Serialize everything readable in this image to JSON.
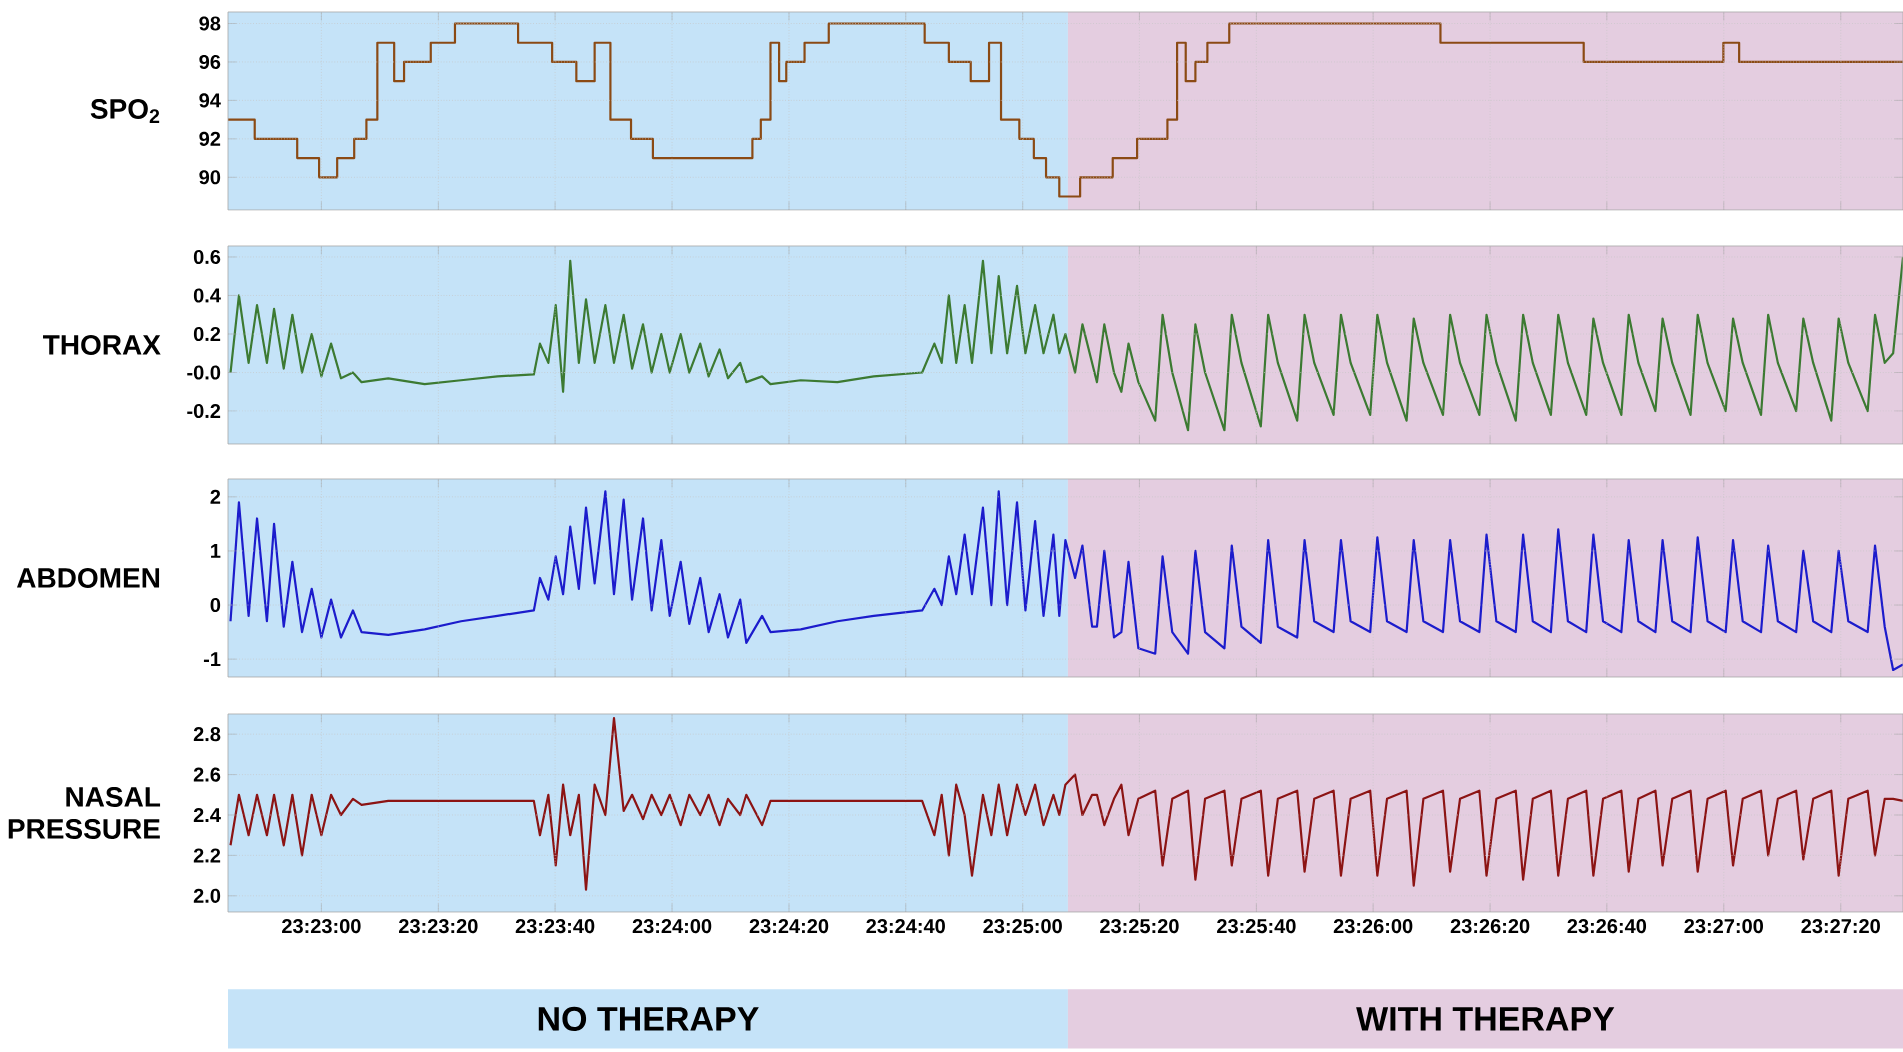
{
  "chart_data": [
    {
      "type": "step",
      "ylabel": "SPO$_{2}$",
      "color": "#8b4a14",
      "x": [
        23.37889,
        23.38016,
        23.38218,
        23.38322,
        23.38408,
        23.38489,
        23.38547,
        23.38599,
        23.38679,
        23.38726,
        23.38853,
        23.38968,
        23.39268,
        23.3943,
        23.39545,
        23.39632,
        23.39707,
        23.39805,
        23.39909,
        23.40382,
        23.40422,
        23.40468,
        23.40509,
        23.40543,
        23.4063,
        23.40745,
        23.41201,
        23.41316,
        23.4142,
        23.41507,
        23.41564,
        23.41651,
        23.4172,
        23.41778,
        23.41841,
        23.4194,
        23.42095,
        23.42211,
        23.42355,
        23.42401,
        23.42442,
        23.42488,
        23.42545,
        23.42649,
        23.43653,
        23.44334,
        23.44998,
        23.45073,
        23.45852
      ],
      "values": [
        93,
        92,
        91,
        90,
        91,
        92,
        93,
        97,
        95,
        96,
        97,
        98,
        97,
        96,
        95,
        97,
        93,
        92,
        91,
        92,
        93,
        97,
        95,
        96,
        97,
        98,
        97,
        96,
        95,
        97,
        93,
        92,
        91,
        90,
        89,
        90,
        91,
        92,
        93,
        97,
        95,
        96,
        97,
        98,
        97,
        96,
        97,
        96,
        96
      ],
      "xlim": [
        23.37889,
        23.45852
      ],
      "ylim": [
        88.3,
        98.6
      ],
      "xticks": [
        {
          "value": 23.38333,
          "label": null
        },
        {
          "value": 23.38889,
          "label": null
        },
        {
          "value": 23.39444,
          "label": null
        },
        {
          "value": 23.4,
          "label": null
        },
        {
          "value": 23.40556,
          "label": null
        },
        {
          "value": 23.41111,
          "label": null
        },
        {
          "value": 23.41667,
          "label": null
        },
        {
          "value": 23.42222,
          "label": null
        },
        {
          "value": 23.42778,
          "label": null
        },
        {
          "value": 23.43333,
          "label": null
        },
        {
          "value": 23.43889,
          "label": null
        },
        {
          "value": 23.44444,
          "label": null
        },
        {
          "value": 23.45,
          "label": null
        },
        {
          "value": 23.45556,
          "label": null
        }
      ],
      "yticks": [
        90,
        92,
        94,
        96,
        98
      ],
      "tick_labels": "y",
      "grid": true,
      "bands": [
        {
          "axis": "x",
          "from": 23.37889,
          "to": 23.41882,
          "color": "#c5e3f8"
        },
        {
          "axis": "x",
          "from": 23.41882,
          "to": 23.45852,
          "color": "#e4cde0"
        }
      ]
    },
    {
      "type": "line",
      "ylabel": "THORAX",
      "color": "#3c7a32",
      "x": [
        23.37901,
        23.37941,
        23.37987,
        23.38027,
        23.38074,
        23.38108,
        23.38154,
        23.38195,
        23.38241,
        23.38287,
        23.38333,
        23.38379,
        23.38426,
        23.38483,
        23.38524,
        23.38651,
        23.38824,
        23.38997,
        23.3917,
        23.39343,
        23.39372,
        23.39412,
        23.39447,
        23.39482,
        23.39516,
        23.39557,
        23.39591,
        23.39632,
        23.39683,
        23.39724,
        23.3977,
        23.3981,
        23.39862,
        23.39903,
        23.39949,
        23.39989,
        23.40041,
        23.40082,
        23.40134,
        23.40174,
        23.40226,
        23.40266,
        23.40324,
        23.40353,
        23.40428,
        23.40468,
        23.40612,
        23.40786,
        23.40959,
        23.41189,
        23.41247,
        23.41282,
        23.41316,
        23.41351,
        23.41391,
        23.41426,
        23.41478,
        23.41518,
        23.41553,
        23.41593,
        23.4164,
        23.4168,
        23.41726,
        23.41766,
        23.41813,
        23.41841,
        23.4187,
        23.41916,
        23.41951,
        23.41997,
        23.4202,
        23.42055,
        23.42101,
        23.42136,
        23.4217,
        23.42217,
        23.42297,
        23.42332,
        23.42378,
        23.42453,
        23.42488,
        23.42534,
        23.42626,
        23.42661,
        23.42707,
        23.42799,
        23.42834,
        23.4288,
        23.42972,
        23.43007,
        23.43053,
        23.43145,
        23.4318,
        23.43226,
        23.43319,
        23.43353,
        23.43399,
        23.43492,
        23.43526,
        23.43572,
        23.43665,
        23.43699,
        23.43746,
        23.43838,
        23.43872,
        23.43919,
        23.44011,
        23.44046,
        23.44092,
        23.44178,
        23.44213,
        23.44259,
        23.44346,
        23.4438,
        23.44426,
        23.44513,
        23.44548,
        23.44594,
        23.44675,
        23.44709,
        23.44755,
        23.44842,
        23.44876,
        23.44923,
        23.45009,
        23.45044,
        23.4509,
        23.45177,
        23.45211,
        23.45257,
        23.45344,
        23.45378,
        23.45425,
        23.45511,
        23.45546,
        23.45592,
        23.45684,
        23.45719,
        23.45765,
        23.45805,
        23.45852
      ],
      "values": [
        0.0,
        0.4,
        0.05,
        0.35,
        0.05,
        0.33,
        0.02,
        0.3,
        0.0,
        0.2,
        -0.02,
        0.15,
        -0.03,
        0.0,
        -0.05,
        -0.03,
        -0.06,
        -0.04,
        -0.02,
        -0.01,
        0.15,
        0.05,
        0.35,
        -0.1,
        0.58,
        0.05,
        0.38,
        0.05,
        0.35,
        0.05,
        0.3,
        0.02,
        0.25,
        0.0,
        0.2,
        0.0,
        0.2,
        0.0,
        0.15,
        -0.02,
        0.12,
        -0.03,
        0.05,
        -0.05,
        -0.02,
        -0.06,
        -0.04,
        -0.05,
        -0.02,
        0.0,
        0.15,
        0.05,
        0.4,
        0.05,
        0.35,
        0.05,
        0.58,
        0.1,
        0.5,
        0.1,
        0.45,
        0.1,
        0.35,
        0.1,
        0.3,
        0.1,
        0.2,
        0.0,
        0.25,
        0.05,
        -0.05,
        0.25,
        0.0,
        -0.1,
        0.15,
        -0.05,
        -0.25,
        0.3,
        0.0,
        -0.3,
        0.25,
        0.0,
        -0.3,
        0.3,
        0.05,
        -0.28,
        0.3,
        0.05,
        -0.25,
        0.3,
        0.05,
        -0.22,
        0.3,
        0.05,
        -0.22,
        0.3,
        0.05,
        -0.25,
        0.28,
        0.05,
        -0.22,
        0.3,
        0.05,
        -0.22,
        0.3,
        0.05,
        -0.25,
        0.3,
        0.05,
        -0.22,
        0.3,
        0.05,
        -0.22,
        0.28,
        0.05,
        -0.22,
        0.3,
        0.05,
        -0.2,
        0.28,
        0.05,
        -0.22,
        0.3,
        0.05,
        -0.2,
        0.28,
        0.05,
        -0.22,
        0.3,
        0.05,
        -0.2,
        0.28,
        0.05,
        -0.25,
        0.28,
        0.05,
        -0.2,
        0.3,
        0.05,
        0.1,
        0.6
      ],
      "xlim": [
        23.37889,
        23.45852
      ],
      "ylim": [
        -0.371,
        0.657
      ],
      "xticks": [
        {
          "value": 23.38333,
          "label": null
        },
        {
          "value": 23.38889,
          "label": null
        },
        {
          "value": 23.39444,
          "label": null
        },
        {
          "value": 23.4,
          "label": null
        },
        {
          "value": 23.40556,
          "label": null
        },
        {
          "value": 23.41111,
          "label": null
        },
        {
          "value": 23.41667,
          "label": null
        },
        {
          "value": 23.42222,
          "label": null
        },
        {
          "value": 23.42778,
          "label": null
        },
        {
          "value": 23.43333,
          "label": null
        },
        {
          "value": 23.43889,
          "label": null
        },
        {
          "value": 23.44444,
          "label": null
        },
        {
          "value": 23.45,
          "label": null
        },
        {
          "value": 23.45556,
          "label": null
        }
      ],
      "yticks": [
        -0.2,
        {
          "value": 0,
          "label": "-0.0"
        },
        0.2,
        0.4,
        0.6
      ],
      "tick_labels": "y",
      "grid": true,
      "bands": [
        {
          "axis": "x",
          "from": 23.37889,
          "to": 23.41882,
          "color": "#c5e3f8"
        },
        {
          "axis": "x",
          "from": 23.41882,
          "to": 23.45852,
          "color": "#e4cde0"
        }
      ]
    },
    {
      "type": "line",
      "ylabel": "ABDOMEN",
      "color": "#1c1ccc",
      "x": [
        23.37901,
        23.37941,
        23.37987,
        23.38027,
        23.38074,
        23.38108,
        23.38154,
        23.38195,
        23.38241,
        23.38287,
        23.38333,
        23.38379,
        23.38426,
        23.38483,
        23.38524,
        23.38651,
        23.38824,
        23.38997,
        23.3917,
        23.39343,
        23.39372,
        23.39412,
        23.39447,
        23.39482,
        23.39516,
        23.39557,
        23.39591,
        23.39632,
        23.39683,
        23.39724,
        23.3977,
        23.3981,
        23.39862,
        23.39903,
        23.39949,
        23.39989,
        23.40041,
        23.40082,
        23.40134,
        23.40174,
        23.40226,
        23.40266,
        23.40324,
        23.40353,
        23.40428,
        23.40468,
        23.40612,
        23.40786,
        23.40959,
        23.41189,
        23.41247,
        23.41282,
        23.41316,
        23.41351,
        23.41391,
        23.41426,
        23.41478,
        23.41518,
        23.41553,
        23.41593,
        23.4164,
        23.4168,
        23.41726,
        23.41766,
        23.41813,
        23.41841,
        23.4187,
        23.41916,
        23.41951,
        23.41997,
        23.4202,
        23.42055,
        23.42101,
        23.42136,
        23.4217,
        23.42217,
        23.42297,
        23.42332,
        23.42378,
        23.42453,
        23.42488,
        23.42534,
        23.42626,
        23.42661,
        23.42707,
        23.42799,
        23.42834,
        23.4288,
        23.42972,
        23.43007,
        23.43053,
        23.43145,
        23.4318,
        23.43226,
        23.43319,
        23.43353,
        23.43399,
        23.43492,
        23.43526,
        23.43572,
        23.43665,
        23.43699,
        23.43746,
        23.43838,
        23.43872,
        23.43919,
        23.44011,
        23.44046,
        23.44092,
        23.44178,
        23.44213,
        23.44259,
        23.44346,
        23.4438,
        23.44426,
        23.44513,
        23.44548,
        23.44594,
        23.44675,
        23.44709,
        23.44755,
        23.44842,
        23.44876,
        23.44923,
        23.45009,
        23.45044,
        23.4509,
        23.45177,
        23.45211,
        23.45257,
        23.45344,
        23.45378,
        23.45425,
        23.45511,
        23.45546,
        23.45592,
        23.45684,
        23.45719,
        23.45765,
        23.45805,
        23.45852
      ],
      "values": [
        -0.3,
        1.9,
        -0.2,
        1.6,
        -0.3,
        1.5,
        -0.4,
        0.8,
        -0.5,
        0.3,
        -0.6,
        0.1,
        -0.6,
        -0.1,
        -0.5,
        -0.55,
        -0.45,
        -0.3,
        -0.2,
        -0.1,
        0.5,
        0.1,
        0.9,
        0.2,
        1.45,
        0.3,
        1.8,
        0.4,
        2.1,
        0.2,
        1.95,
        0.1,
        1.6,
        -0.1,
        1.2,
        -0.2,
        0.8,
        -0.35,
        0.5,
        -0.5,
        0.2,
        -0.6,
        0.1,
        -0.7,
        -0.2,
        -0.5,
        -0.45,
        -0.3,
        -0.2,
        -0.1,
        0.3,
        0.0,
        0.9,
        0.2,
        1.3,
        0.2,
        1.8,
        0.0,
        2.1,
        0.0,
        1.9,
        -0.1,
        1.55,
        -0.2,
        1.3,
        -0.2,
        1.2,
        0.5,
        1.1,
        -0.4,
        -0.4,
        1.0,
        -0.6,
        -0.5,
        0.8,
        -0.8,
        -0.9,
        0.9,
        -0.5,
        -0.9,
        1.0,
        -0.5,
        -0.8,
        1.1,
        -0.4,
        -0.7,
        1.2,
        -0.4,
        -0.6,
        1.2,
        -0.3,
        -0.5,
        1.2,
        -0.3,
        -0.5,
        1.25,
        -0.3,
        -0.5,
        1.2,
        -0.3,
        -0.5,
        1.2,
        -0.3,
        -0.5,
        1.3,
        -0.3,
        -0.5,
        1.3,
        -0.3,
        -0.5,
        1.4,
        -0.3,
        -0.5,
        1.3,
        -0.3,
        -0.5,
        1.2,
        -0.3,
        -0.5,
        1.2,
        -0.3,
        -0.5,
        1.25,
        -0.3,
        -0.5,
        1.2,
        -0.3,
        -0.5,
        1.1,
        -0.3,
        -0.5,
        1.0,
        -0.3,
        -0.5,
        1.0,
        -0.3,
        -0.5,
        1.1,
        -0.4,
        -1.2,
        -1.1
      ],
      "xlim": [
        23.37889,
        23.45852
      ],
      "ylim": [
        -1.33,
        2.33
      ],
      "xticks": [
        {
          "value": 23.38333,
          "label": null
        },
        {
          "value": 23.38889,
          "label": null
        },
        {
          "value": 23.39444,
          "label": null
        },
        {
          "value": 23.4,
          "label": null
        },
        {
          "value": 23.40556,
          "label": null
        },
        {
          "value": 23.41111,
          "label": null
        },
        {
          "value": 23.41667,
          "label": null
        },
        {
          "value": 23.42222,
          "label": null
        },
        {
          "value": 23.42778,
          "label": null
        },
        {
          "value": 23.43333,
          "label": null
        },
        {
          "value": 23.43889,
          "label": null
        },
        {
          "value": 23.44444,
          "label": null
        },
        {
          "value": 23.45,
          "label": null
        },
        {
          "value": 23.45556,
          "label": null
        }
      ],
      "yticks": [
        -1,
        0,
        1,
        2
      ],
      "tick_labels": "y",
      "grid": true,
      "bands": [
        {
          "axis": "x",
          "from": 23.37889,
          "to": 23.41882,
          "color": "#c5e3f8"
        },
        {
          "axis": "x",
          "from": 23.41882,
          "to": 23.45852,
          "color": "#e4cde0"
        }
      ]
    },
    {
      "type": "line",
      "ylabel": "NASAL PRESSURE",
      "color": "#8c1414",
      "x": [
        23.37901,
        23.37941,
        23.37987,
        23.38027,
        23.38074,
        23.38108,
        23.38154,
        23.38195,
        23.38241,
        23.38287,
        23.38333,
        23.38379,
        23.38426,
        23.38483,
        23.38524,
        23.38651,
        23.38824,
        23.38997,
        23.3917,
        23.39343,
        23.39372,
        23.39412,
        23.39447,
        23.39482,
        23.39516,
        23.39557,
        23.39591,
        23.39632,
        23.39683,
        23.39724,
        23.3977,
        23.3981,
        23.39862,
        23.39903,
        23.39949,
        23.39989,
        23.40041,
        23.40082,
        23.40134,
        23.40174,
        23.40226,
        23.40266,
        23.40324,
        23.40353,
        23.40428,
        23.40468,
        23.40612,
        23.40786,
        23.40959,
        23.41189,
        23.41247,
        23.41282,
        23.41316,
        23.41351,
        23.41391,
        23.41426,
        23.41478,
        23.41518,
        23.41553,
        23.41593,
        23.4164,
        23.4168,
        23.41726,
        23.41766,
        23.41813,
        23.41841,
        23.4187,
        23.41916,
        23.41951,
        23.41997,
        23.4202,
        23.42055,
        23.42101,
        23.42136,
        23.4217,
        23.42217,
        23.42297,
        23.42332,
        23.42378,
        23.42453,
        23.42488,
        23.42534,
        23.42626,
        23.42661,
        23.42707,
        23.42799,
        23.42834,
        23.4288,
        23.42972,
        23.43007,
        23.43053,
        23.43145,
        23.4318,
        23.43226,
        23.43319,
        23.43353,
        23.43399,
        23.43492,
        23.43526,
        23.43572,
        23.43665,
        23.43699,
        23.43746,
        23.43838,
        23.43872,
        23.43919,
        23.44011,
        23.44046,
        23.44092,
        23.44178,
        23.44213,
        23.44259,
        23.44346,
        23.4438,
        23.44426,
        23.44513,
        23.44548,
        23.44594,
        23.44675,
        23.44709,
        23.44755,
        23.44842,
        23.44876,
        23.44923,
        23.45009,
        23.45044,
        23.4509,
        23.45177,
        23.45211,
        23.45257,
        23.45344,
        23.45378,
        23.45425,
        23.45511,
        23.45546,
        23.45592,
        23.45684,
        23.45719,
        23.45765,
        23.45805,
        23.45852
      ],
      "values": [
        2.25,
        2.5,
        2.3,
        2.5,
        2.3,
        2.5,
        2.25,
        2.5,
        2.2,
        2.5,
        2.3,
        2.5,
        2.4,
        2.48,
        2.45,
        2.47,
        2.47,
        2.47,
        2.47,
        2.47,
        2.3,
        2.5,
        2.15,
        2.55,
        2.3,
        2.5,
        2.03,
        2.55,
        2.4,
        2.88,
        2.42,
        2.5,
        2.38,
        2.5,
        2.4,
        2.5,
        2.35,
        2.5,
        2.4,
        2.5,
        2.35,
        2.48,
        2.4,
        2.5,
        2.35,
        2.47,
        2.47,
        2.47,
        2.47,
        2.47,
        2.3,
        2.5,
        2.2,
        2.55,
        2.4,
        2.1,
        2.5,
        2.3,
        2.55,
        2.3,
        2.55,
        2.4,
        2.55,
        2.35,
        2.5,
        2.4,
        2.55,
        2.6,
        2.4,
        2.5,
        2.5,
        2.35,
        2.48,
        2.55,
        2.3,
        2.48,
        2.52,
        2.15,
        2.48,
        2.52,
        2.08,
        2.48,
        2.52,
        2.15,
        2.48,
        2.52,
        2.1,
        2.48,
        2.52,
        2.12,
        2.48,
        2.52,
        2.1,
        2.48,
        2.52,
        2.1,
        2.48,
        2.52,
        2.05,
        2.48,
        2.52,
        2.12,
        2.48,
        2.52,
        2.1,
        2.48,
        2.52,
        2.08,
        2.48,
        2.52,
        2.1,
        2.48,
        2.52,
        2.1,
        2.48,
        2.52,
        2.12,
        2.48,
        2.52,
        2.15,
        2.48,
        2.52,
        2.12,
        2.48,
        2.52,
        2.15,
        2.48,
        2.52,
        2.2,
        2.48,
        2.52,
        2.18,
        2.48,
        2.52,
        2.1,
        2.48,
        2.52,
        2.2,
        2.48,
        2.48,
        2.47
      ],
      "xlim": [
        23.37889,
        23.45852
      ],
      "ylim": [
        1.92,
        2.9
      ],
      "xticks": [
        {
          "value": 23.38333,
          "label": "23:23:00"
        },
        {
          "value": 23.38889,
          "label": "23:23:20"
        },
        {
          "value": 23.39444,
          "label": "23:23:40"
        },
        {
          "value": 23.4,
          "label": "23:24:00"
        },
        {
          "value": 23.40556,
          "label": "23:24:20"
        },
        {
          "value": 23.41111,
          "label": "23:24:40"
        },
        {
          "value": 23.41667,
          "label": "23:25:00"
        },
        {
          "value": 23.42222,
          "label": "23:25:20"
        },
        {
          "value": 23.42778,
          "label": "23:25:40"
        },
        {
          "value": 23.43333,
          "label": "23:26:00"
        },
        {
          "value": 23.43889,
          "label": "23:26:20"
        },
        {
          "value": 23.44444,
          "label": "23:26:40"
        },
        {
          "value": 23.45,
          "label": "23:27:00"
        },
        {
          "value": 23.45556,
          "label": "23:27:20"
        }
      ],
      "yticks": [
        {
          "value": 2,
          "label": "2.0"
        },
        2.2,
        2.4,
        2.6,
        2.8
      ],
      "grid": true,
      "bands": [
        {
          "axis": "x",
          "from": 23.37889,
          "to": 23.41882,
          "color": "#c5e3f8",
          "label": "NO THERAPY"
        },
        {
          "axis": "x",
          "from": 23.41882,
          "to": 23.45852,
          "color": "#e4cde0",
          "label": "WITH THERAPY"
        }
      ]
    }
  ]
}
